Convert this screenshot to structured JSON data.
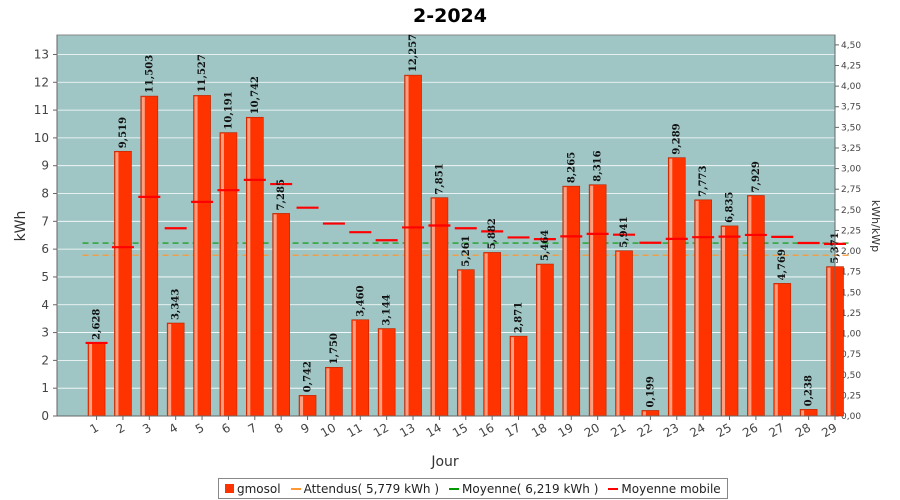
{
  "chart_data": {
    "type": "bar",
    "title": "2-2024",
    "xlabel": "Jour",
    "ylabel": "kWh",
    "y2label": "kWh/kWp",
    "ylim": [
      0,
      13.7
    ],
    "y2lim": [
      0,
      4.62
    ],
    "y_ticks": [
      "0",
      "1",
      "2",
      "3",
      "4",
      "5",
      "6",
      "7",
      "8",
      "9",
      "10",
      "11",
      "12",
      "13"
    ],
    "y2_ticks": [
      "0,00",
      "0,25",
      "0,50",
      "0,75",
      "1,00",
      "1,25",
      "1,50",
      "1,75",
      "2,00",
      "2,25",
      "2,50",
      "2,75",
      "3,00",
      "3,25",
      "3,50",
      "3,75",
      "4,00",
      "4,25",
      "4,50"
    ],
    "categories": [
      "1",
      "2",
      "3",
      "4",
      "5",
      "6",
      "7",
      "8",
      "9",
      "10",
      "11",
      "12",
      "13",
      "14",
      "15",
      "16",
      "17",
      "18",
      "19",
      "20",
      "21",
      "22",
      "23",
      "24",
      "25",
      "26",
      "27",
      "28",
      "29"
    ],
    "series": [
      {
        "name": "gmosol",
        "color": "#ff3300",
        "values": [
          2.628,
          9.519,
          11.503,
          3.343,
          11.527,
          10.191,
          10.742,
          7.285,
          0.742,
          1.75,
          3.46,
          3.144,
          12.257,
          7.851,
          5.261,
          5.882,
          2.871,
          5.464,
          8.265,
          8.316,
          5.941,
          0.199,
          9.289,
          7.773,
          6.835,
          7.929,
          4.769,
          0.238,
          5.371
        ],
        "labels": [
          "2,628",
          "9,519",
          "11,503",
          "3,343",
          "11,527",
          "10,191",
          "10,742",
          "7,285",
          "0,742",
          "1,750",
          "3,460",
          "3,144",
          "12,257",
          "7,851",
          "5,261",
          "5,882",
          "2,871",
          "5,464",
          "8,265",
          "8,316",
          "5,941",
          "0,199",
          "9,289",
          "7,773",
          "6,835",
          "7,929",
          "4,769",
          "0,238",
          "5,371"
        ]
      },
      {
        "name": "Moyenne mobile",
        "color": "#ff0000",
        "values": [
          2.628,
          6.07,
          7.88,
          6.75,
          7.7,
          8.12,
          8.49,
          8.34,
          7.49,
          6.92,
          6.61,
          6.32,
          6.78,
          6.85,
          6.75,
          6.64,
          6.42,
          6.36,
          6.46,
          6.55,
          6.52,
          6.23,
          6.37,
          6.43,
          6.45,
          6.51,
          6.44,
          6.22,
          6.19
        ]
      }
    ],
    "reference_lines": [
      {
        "name": "Attendus( 5,779 kWh )",
        "value": 5.779,
        "color": "#ff9933",
        "style": "dashed"
      },
      {
        "name": "Moyenne( 6,219 kWh )",
        "value": 6.219,
        "color": "#009900",
        "style": "dashed"
      }
    ],
    "colors": {
      "plot_bg": "#9fc5c5",
      "bar": "#ff3300",
      "bar_highlight": "#ffb399",
      "grid": "#ffffff"
    },
    "grid": true,
    "legend_position": "bottom"
  }
}
